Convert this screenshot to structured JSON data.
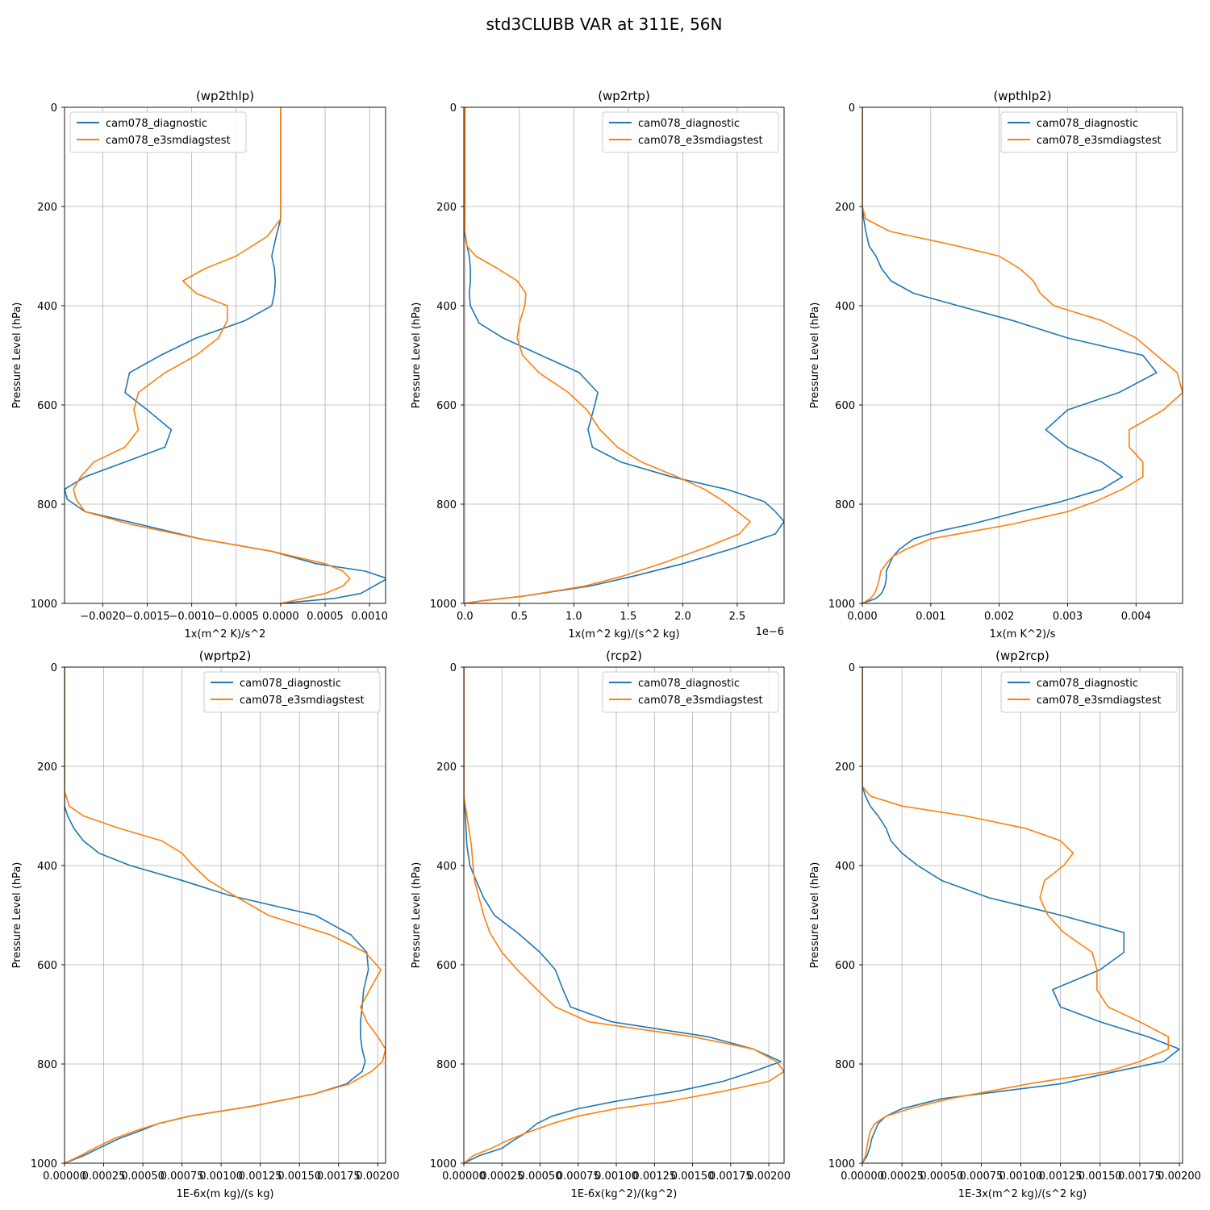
{
  "figure_title": "std3CLUBB VAR at 311E, 56N",
  "colors": {
    "diagnostic": "#1f77b4",
    "e3smdiagstest": "#ff7f0e",
    "grid": "#b0b0b0"
  },
  "chart_data": [
    {
      "type": "line",
      "title": "(wp2thlp)",
      "xlabel": "1x(m^2 K)/s^2",
      "ylabel": "Pressure Level (hPa)",
      "xlim": [
        -0.00243,
        0.00118
      ],
      "ylim": [
        1000,
        0
      ],
      "xticks": [
        -0.002,
        -0.0015,
        -0.001,
        -0.0005,
        0.0,
        0.0005,
        0.001
      ],
      "xtick_labels": [
        "−0.0020",
        "−0.0015",
        "−0.0010",
        "−0.0005",
        "0.0000",
        "0.0005",
        "0.0010"
      ],
      "yticks": [
        0,
        200,
        400,
        600,
        800,
        1000
      ],
      "ytick_labels": [
        "0",
        "200",
        "400",
        "600",
        "800",
        "1000"
      ],
      "offset_text": "",
      "grid": true,
      "legend_loc": "upper left",
      "pressure": [
        0,
        100,
        225,
        260,
        300,
        325,
        350,
        375,
        400,
        430,
        465,
        500,
        535,
        575,
        610,
        650,
        685,
        715,
        745,
        770,
        790,
        815,
        840,
        870,
        895,
        920,
        935,
        950,
        965,
        980,
        990,
        1000
      ],
      "series": [
        {
          "name": "cam078_diagnostic",
          "x": [
            0.0,
            0.0,
            0.0,
            -5e-05,
            -0.0001,
            -7e-05,
            -6e-05,
            -7e-05,
            -0.0001,
            -0.0004,
            -0.00095,
            -0.00135,
            -0.0017,
            -0.00175,
            -0.0015,
            -0.00123,
            -0.0013,
            -0.00175,
            -0.0022,
            -0.00243,
            -0.0024,
            -0.0022,
            -0.0016,
            -0.0009,
            -0.0001,
            0.0004,
            0.00095,
            0.0012,
            0.00105,
            0.0009,
            0.0006,
            0.0
          ]
        },
        {
          "name": "cam078_e3smdiagstest",
          "x": [
            0.0,
            0.0,
            0.0,
            -0.00015,
            -0.0005,
            -0.00085,
            -0.0011,
            -0.00095,
            -0.0006,
            -0.0006,
            -0.0007,
            -0.00095,
            -0.0013,
            -0.0016,
            -0.00165,
            -0.0016,
            -0.00175,
            -0.0021,
            -0.00225,
            -0.00233,
            -0.0023,
            -0.0022,
            -0.0017,
            -0.0009,
            -0.0001,
            0.0005,
            0.0007,
            0.00078,
            0.0007,
            0.0005,
            0.00025,
            0.0
          ]
        }
      ]
    },
    {
      "type": "line",
      "title": "(wp2rtp)",
      "xlabel": "1x(m^2 kg)/(s^2 kg)",
      "ylabel": "Pressure Level (hPa)",
      "xlim": [
        -0.01,
        2.93
      ],
      "ylim": [
        1000,
        0
      ],
      "xticks": [
        0.0,
        0.5,
        1.0,
        1.5,
        2.0,
        2.5
      ],
      "xtick_labels": [
        "0.0",
        "0.5",
        "1.0",
        "1.5",
        "2.0",
        "2.5"
      ],
      "yticks": [
        0,
        200,
        400,
        600,
        800,
        1000
      ],
      "ytick_labels": [
        "0",
        "200",
        "400",
        "600",
        "800",
        "1000"
      ],
      "offset_text": "1e−6",
      "grid": true,
      "legend_loc": "upper right",
      "pressure": [
        0,
        100,
        200,
        225,
        250,
        280,
        300,
        325,
        350,
        375,
        400,
        435,
        465,
        500,
        535,
        575,
        610,
        650,
        685,
        715,
        745,
        770,
        795,
        815,
        835,
        860,
        890,
        920,
        945,
        965,
        985,
        995,
        1000
      ],
      "series": [
        {
          "name": "cam078_diagnostic",
          "x": [
            0.0,
            0.0,
            0.0,
            0.0,
            -0.01,
            0.02,
            0.04,
            0.05,
            0.05,
            0.04,
            0.05,
            0.13,
            0.35,
            0.7,
            1.05,
            1.22,
            1.18,
            1.13,
            1.17,
            1.43,
            1.9,
            2.4,
            2.75,
            2.85,
            2.93,
            2.85,
            2.45,
            2.0,
            1.55,
            1.15,
            0.55,
            0.15,
            0.0
          ]
        },
        {
          "name": "cam078_e3smdiagstest",
          "x": [
            0.0,
            0.0,
            0.0,
            0.0,
            0.0,
            0.02,
            0.1,
            0.3,
            0.48,
            0.56,
            0.55,
            0.5,
            0.48,
            0.53,
            0.68,
            0.95,
            1.12,
            1.24,
            1.4,
            1.62,
            1.95,
            2.2,
            2.38,
            2.5,
            2.62,
            2.52,
            2.18,
            1.8,
            1.45,
            1.1,
            0.55,
            0.15,
            0.0
          ]
        }
      ]
    },
    {
      "type": "line",
      "title": "(wpthlp2)",
      "xlabel": "1x(m K^2)/s",
      "ylabel": "Pressure Level (hPa)",
      "xlim": [
        0.0,
        0.00468
      ],
      "ylim": [
        1000,
        0
      ],
      "xticks": [
        0.0,
        0.001,
        0.002,
        0.003,
        0.004
      ],
      "xtick_labels": [
        "0.000",
        "0.001",
        "0.002",
        "0.003",
        "0.004"
      ],
      "yticks": [
        0,
        200,
        400,
        600,
        800,
        1000
      ],
      "ytick_labels": [
        "0",
        "200",
        "400",
        "600",
        "800",
        "1000"
      ],
      "offset_text": "",
      "grid": true,
      "legend_loc": "upper right",
      "pressure": [
        0,
        100,
        180,
        200,
        225,
        250,
        280,
        300,
        325,
        350,
        375,
        400,
        430,
        465,
        500,
        535,
        575,
        610,
        650,
        685,
        715,
        745,
        770,
        795,
        815,
        840,
        855,
        870,
        890,
        905,
        920,
        935,
        950,
        965,
        980,
        990,
        1000
      ],
      "series": [
        {
          "name": "cam078_diagnostic",
          "x": [
            0.0,
            0.0,
            0.0,
            0.0,
            2e-05,
            5e-05,
            0.0001,
            0.0002,
            0.00028,
            0.00042,
            0.00075,
            0.0014,
            0.0022,
            0.003,
            0.0041,
            0.0043,
            0.00375,
            0.003,
            0.00268,
            0.003,
            0.0035,
            0.0038,
            0.0035,
            0.0029,
            0.0023,
            0.0016,
            0.0011,
            0.00075,
            0.00055,
            0.00045,
            0.0004,
            0.00035,
            0.00035,
            0.00033,
            0.00028,
            0.0002,
            0.0
          ]
        },
        {
          "name": "cam078_e3smdiagstest",
          "x": [
            0.0,
            0.0,
            0.0,
            0.0,
            5e-05,
            0.0004,
            0.0014,
            0.002,
            0.0023,
            0.0025,
            0.0026,
            0.0028,
            0.0035,
            0.004,
            0.0043,
            0.0046,
            0.00468,
            0.0044,
            0.0039,
            0.0039,
            0.0041,
            0.0041,
            0.0038,
            0.0034,
            0.003,
            0.0022,
            0.0016,
            0.001,
            0.00065,
            0.00045,
            0.00035,
            0.00027,
            0.00025,
            0.00022,
            0.00018,
            0.00012,
            0.0
          ]
        }
      ]
    },
    {
      "type": "line",
      "title": "(wprtp2)",
      "xlabel": "1E-6x(m kg)/(s kg)",
      "ylabel": "Pressure Level (hPa)",
      "xlim": [
        0.0,
        0.00205
      ],
      "ylim": [
        1000,
        0
      ],
      "xticks": [
        0.0,
        0.00025,
        0.0005,
        0.00075,
        0.001,
        0.00125,
        0.0015,
        0.00175,
        0.002
      ],
      "xtick_labels": [
        "0.00000",
        "0.00025",
        "0.00050",
        "0.00075",
        "0.00100",
        "0.00125",
        "0.00150",
        "0.00175",
        "0.00200"
      ],
      "yticks": [
        0,
        200,
        400,
        600,
        800,
        1000
      ],
      "ytick_labels": [
        "0",
        "200",
        "400",
        "600",
        "800",
        "1000"
      ],
      "offset_text": "",
      "grid": true,
      "legend_loc": "upper right",
      "pressure": [
        0,
        100,
        200,
        250,
        280,
        300,
        325,
        350,
        375,
        400,
        430,
        460,
        500,
        540,
        575,
        610,
        650,
        685,
        715,
        745,
        770,
        795,
        815,
        840,
        860,
        885,
        905,
        920,
        935,
        950,
        965,
        985,
        1000
      ],
      "series": [
        {
          "name": "cam078_diagnostic",
          "x": [
            0.0,
            0.0,
            0.0,
            0.0,
            0.0,
            2e-05,
            6e-05,
            0.00012,
            0.00022,
            0.00042,
            0.00075,
            0.00105,
            0.0016,
            0.00183,
            0.00193,
            0.00194,
            0.00191,
            0.0019,
            0.00189,
            0.00189,
            0.0019,
            0.00192,
            0.0019,
            0.0018,
            0.0016,
            0.0012,
            0.0008,
            0.0006,
            0.00048,
            0.00035,
            0.00025,
            0.00012,
            0.0
          ]
        },
        {
          "name": "cam078_e3smdiagstest",
          "x": [
            0.0,
            0.0,
            0.0,
            0.0,
            3e-05,
            0.00012,
            0.00035,
            0.00062,
            0.00075,
            0.00082,
            0.00092,
            0.00108,
            0.0013,
            0.0017,
            0.00192,
            0.00202,
            0.00195,
            0.00189,
            0.00193,
            0.002,
            0.00205,
            0.00203,
            0.00196,
            0.00182,
            0.0016,
            0.0012,
            0.0008,
            0.0006,
            0.00045,
            0.00032,
            0.00022,
            0.0001,
            0.0
          ]
        }
      ]
    },
    {
      "type": "line",
      "title": "(rcp2)",
      "xlabel": "1E-6x(kg^2)/(kg^2)",
      "ylabel": "Pressure Level (hPa)",
      "xlim": [
        0.0,
        0.0021
      ],
      "ylim": [
        1000,
        0
      ],
      "xticks": [
        0.0,
        0.00025,
        0.0005,
        0.00075,
        0.001,
        0.00125,
        0.0015,
        0.00175,
        0.002
      ],
      "xtick_labels": [
        "0.00000",
        "0.00025",
        "0.00050",
        "0.00075",
        "0.00100",
        "0.00125",
        "0.00150",
        "0.00175",
        "0.00200"
      ],
      "yticks": [
        0,
        200,
        400,
        600,
        800,
        1000
      ],
      "ytick_labels": [
        "0",
        "200",
        "400",
        "600",
        "800",
        "1000"
      ],
      "offset_text": "",
      "grid": true,
      "legend_loc": "upper right",
      "pressure": [
        0,
        100,
        200,
        260,
        300,
        360,
        400,
        430,
        465,
        500,
        535,
        575,
        610,
        650,
        685,
        715,
        745,
        770,
        795,
        815,
        835,
        855,
        875,
        890,
        905,
        920,
        940,
        955,
        970,
        985,
        1000
      ],
      "series": [
        {
          "name": "cam078_diagnostic",
          "x": [
            0.0,
            0.0,
            0.0,
            0.0,
            1e-05,
            2e-05,
            4e-05,
            8e-05,
            0.00013,
            0.0002,
            0.00035,
            0.0005,
            0.0006,
            0.00065,
            0.0007,
            0.00097,
            0.0016,
            0.0019,
            0.00208,
            0.0019,
            0.0017,
            0.0014,
            0.001,
            0.00075,
            0.00058,
            0.00048,
            0.0004,
            0.00032,
            0.00025,
            0.0001,
            0.0
          ]
        },
        {
          "name": "cam078_e3smdiagstest",
          "x": [
            0.0,
            0.0,
            0.0,
            0.0,
            2e-05,
            5e-05,
            6e-05,
            7e-05,
            0.0001,
            0.00013,
            0.00017,
            0.00025,
            0.00035,
            0.00048,
            0.0006,
            0.00082,
            0.0015,
            0.0019,
            0.00205,
            0.0021,
            0.002,
            0.0017,
            0.00135,
            0.001,
            0.00075,
            0.00058,
            0.0004,
            0.00028,
            0.00018,
            6e-05,
            0.0
          ]
        }
      ]
    },
    {
      "type": "line",
      "title": "(wp2rcp)",
      "xlabel": "1E-3x(m^2 kg)/(s^2 kg)",
      "ylabel": "Pressure Level (hPa)",
      "xlim": [
        0.0,
        0.00202
      ],
      "ylim": [
        1000,
        0
      ],
      "xticks": [
        0.0,
        0.00025,
        0.0005,
        0.00075,
        0.001,
        0.00125,
        0.0015,
        0.00175,
        0.002
      ],
      "xtick_labels": [
        "0.00000",
        "0.00025",
        "0.00050",
        "0.00075",
        "0.00100",
        "0.00125",
        "0.00150",
        "0.00175",
        "0.00200"
      ],
      "yticks": [
        0,
        200,
        400,
        600,
        800,
        1000
      ],
      "ytick_labels": [
        "0",
        "200",
        "400",
        "600",
        "800",
        "1000"
      ],
      "offset_text": "",
      "grid": true,
      "legend_loc": "upper right",
      "pressure": [
        0,
        100,
        200,
        240,
        260,
        280,
        300,
        325,
        350,
        375,
        400,
        430,
        465,
        500,
        535,
        575,
        610,
        650,
        685,
        715,
        745,
        770,
        795,
        815,
        840,
        870,
        890,
        905,
        920,
        935,
        950,
        965,
        985,
        1000
      ],
      "series": [
        {
          "name": "cam078_diagnostic",
          "x": [
            0.0,
            0.0,
            0.0,
            0.0,
            2e-05,
            5e-05,
            0.0001,
            0.00015,
            0.00018,
            0.00025,
            0.00035,
            0.0005,
            0.0008,
            0.00125,
            0.00165,
            0.00165,
            0.0015,
            0.0012,
            0.00125,
            0.0015,
            0.0018,
            0.002,
            0.0019,
            0.0016,
            0.00125,
            0.0005,
            0.00025,
            0.00015,
            0.0001,
            8e-05,
            6e-05,
            5e-05,
            3e-05,
            0.0
          ]
        },
        {
          "name": "cam078_e3smdiagstest",
          "x": [
            0.0,
            0.0,
            0.0,
            0.0,
            5e-05,
            0.00025,
            0.00065,
            0.00103,
            0.00125,
            0.00133,
            0.00127,
            0.00115,
            0.00112,
            0.00117,
            0.00127,
            0.00145,
            0.00148,
            0.00148,
            0.00155,
            0.00175,
            0.00193,
            0.00193,
            0.00175,
            0.00155,
            0.00105,
            0.00055,
            0.0003,
            0.00015,
            8e-05,
            5e-05,
            4e-05,
            3e-05,
            2e-05,
            0.0
          ]
        }
      ]
    }
  ]
}
